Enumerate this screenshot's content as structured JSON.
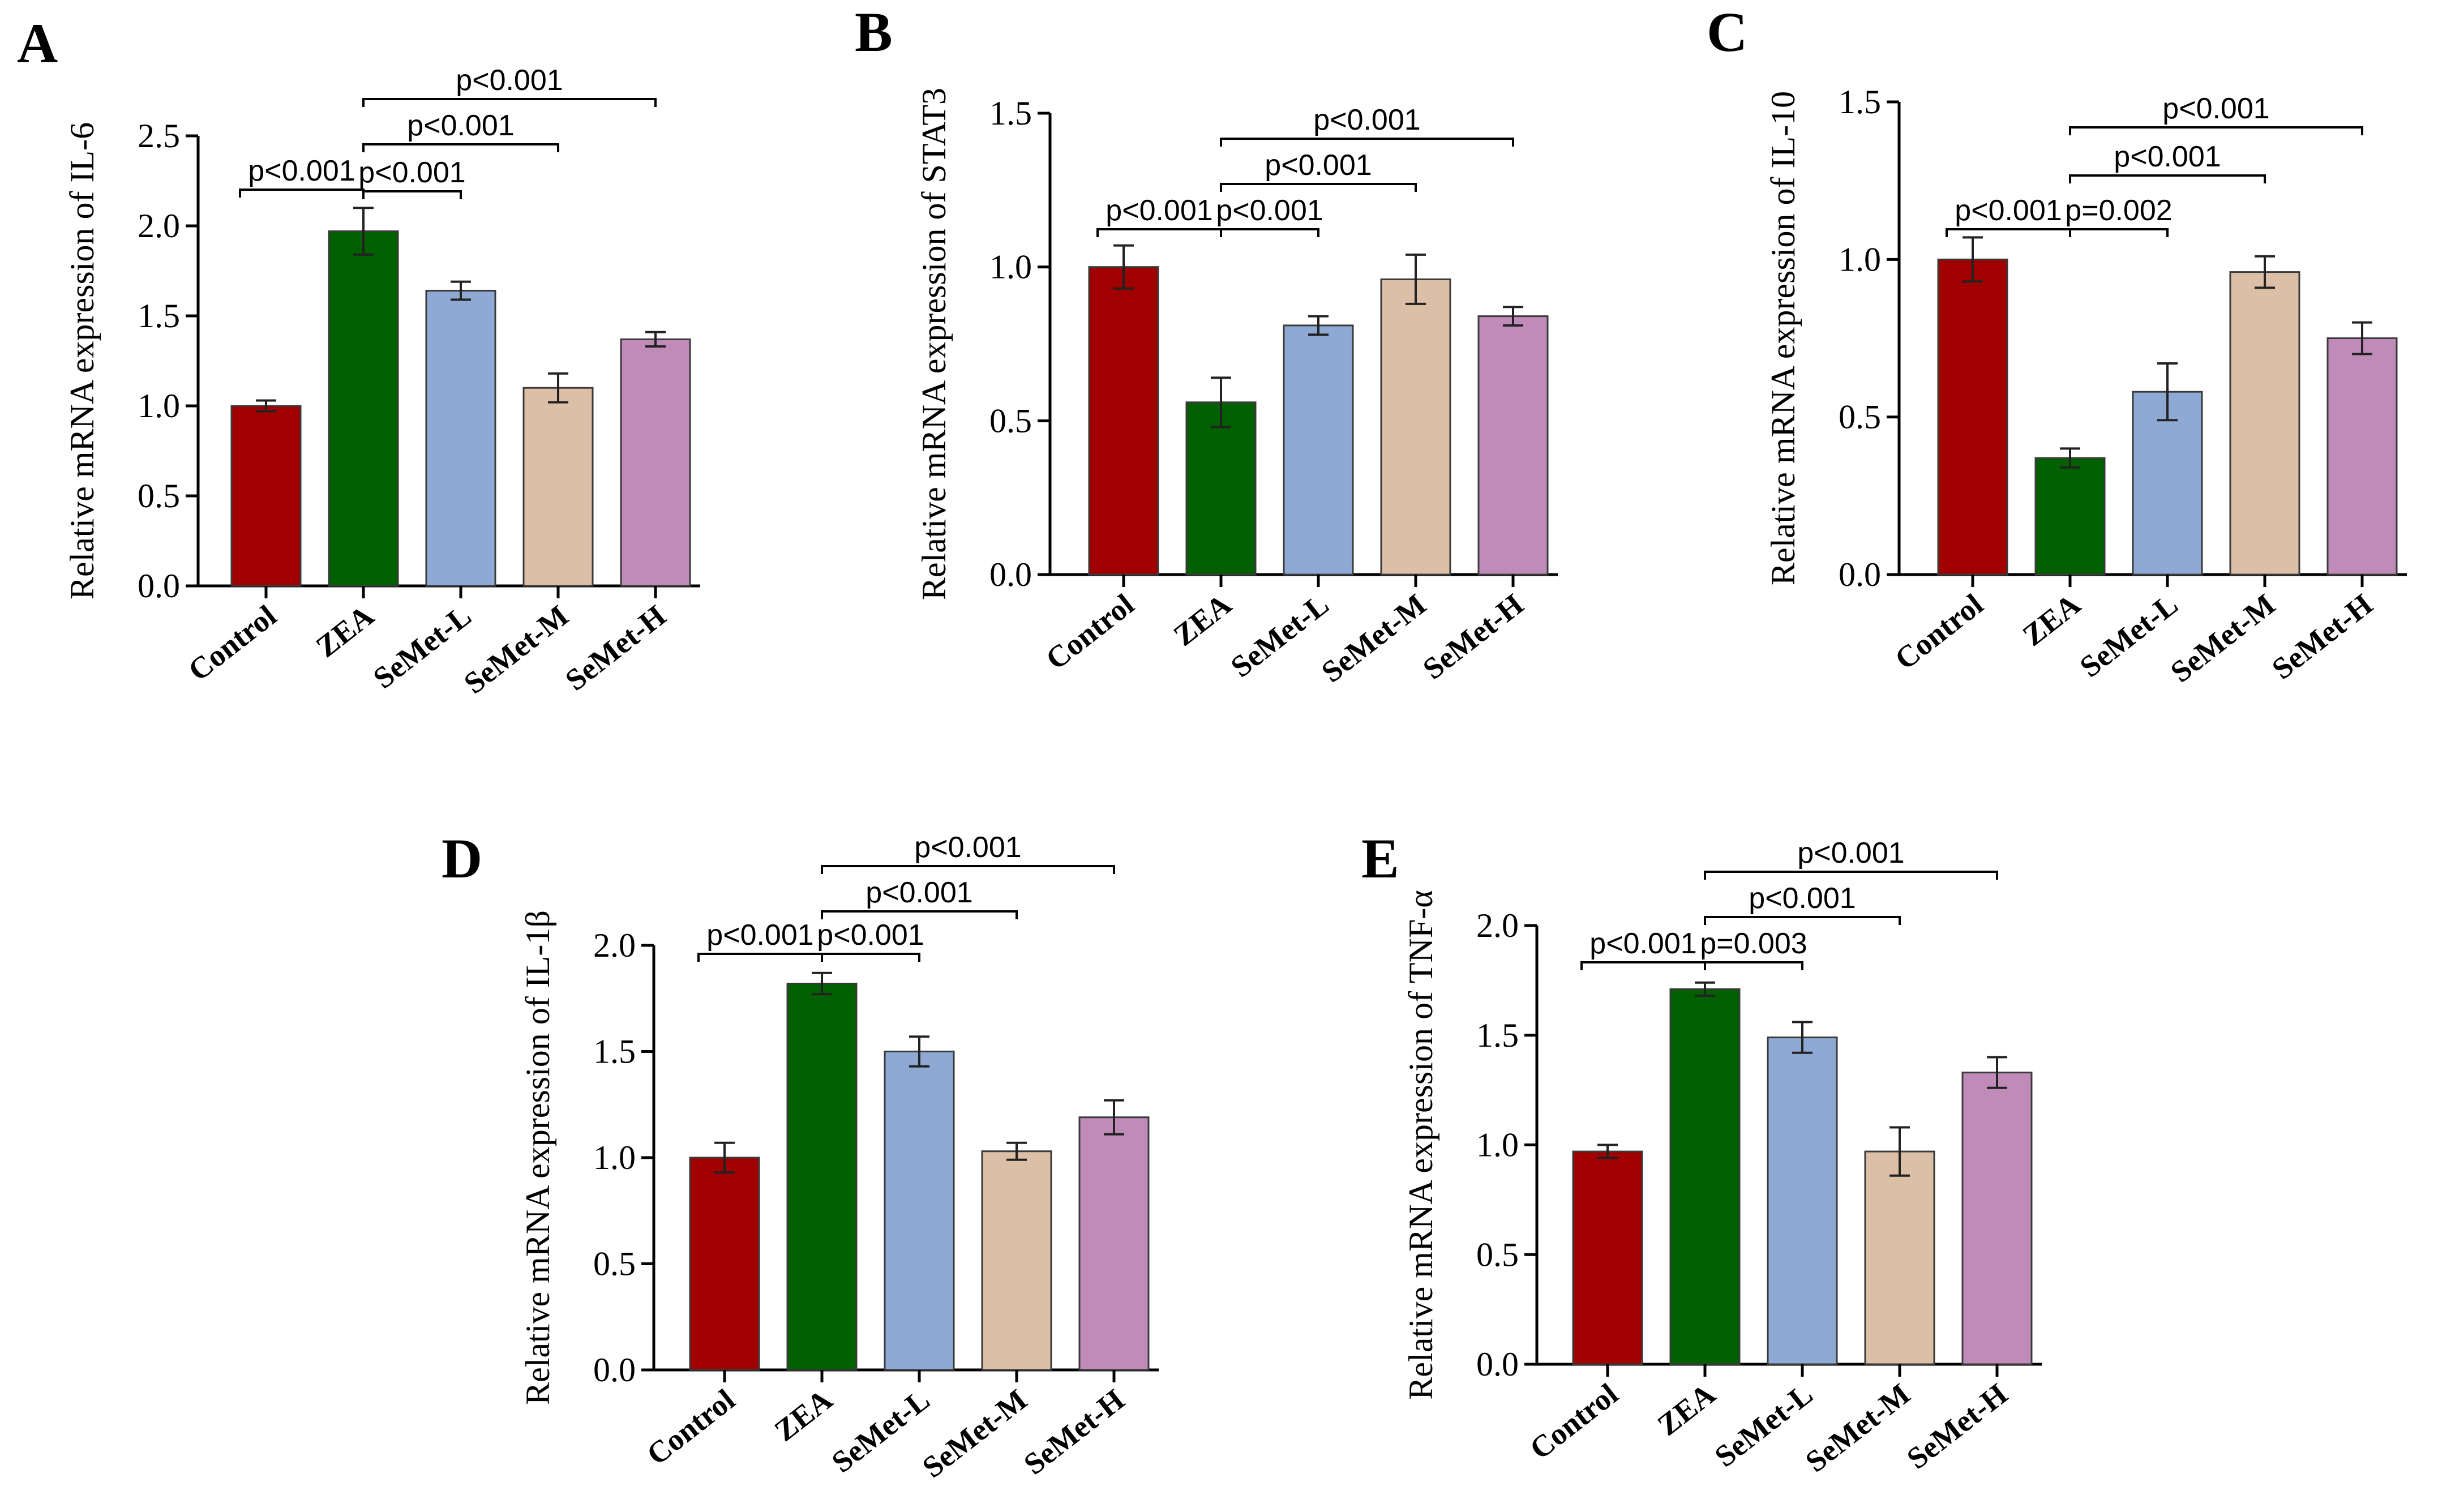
{
  "chart_data": [
    {
      "panel": "A",
      "type": "bar",
      "ylabel": "Relative mRNA expression of IL-6",
      "ylim": [
        0,
        2.5
      ],
      "yticks": [
        "0.0",
        "0.5",
        "1.0",
        "1.5",
        "2.0",
        "2.5"
      ],
      "categories": [
        "Control",
        "ZEA",
        "SeMet-L",
        "SeMet-M",
        "SeMet-H"
      ],
      "values": [
        1.0,
        1.97,
        1.64,
        1.1,
        1.37
      ],
      "errors": [
        0.03,
        0.13,
        0.05,
        0.08,
        0.04
      ],
      "significance": [
        {
          "from": 0,
          "to": 1,
          "label": "p<0.001"
        },
        {
          "from": 1,
          "to": 2,
          "label": "p<0.001"
        },
        {
          "from": 1,
          "to": 3,
          "label": "p<0.001"
        },
        {
          "from": 1,
          "to": 4,
          "label": "p<0.001"
        }
      ]
    },
    {
      "panel": "B",
      "type": "bar",
      "ylabel": "Relative mRNA expression of STAT3",
      "ylim": [
        0,
        1.5
      ],
      "yticks": [
        "0.0",
        "0.5",
        "1.0",
        "1.5"
      ],
      "categories": [
        "Control",
        "ZEA",
        "SeMet-L",
        "SeMet-M",
        "SeMet-H"
      ],
      "values": [
        1.0,
        0.56,
        0.81,
        0.96,
        0.84
      ],
      "errors": [
        0.07,
        0.08,
        0.03,
        0.08,
        0.03
      ],
      "significance": [
        {
          "from": 0,
          "to": 1,
          "label": "p<0.001"
        },
        {
          "from": 1,
          "to": 2,
          "label": "p<0.001"
        },
        {
          "from": 1,
          "to": 3,
          "label": "p<0.001"
        },
        {
          "from": 1,
          "to": 4,
          "label": "p<0.001"
        }
      ]
    },
    {
      "panel": "C",
      "type": "bar",
      "ylabel": "Relative mRNA expression of IL-10",
      "ylim": [
        0,
        1.5
      ],
      "yticks": [
        "0.0",
        "0.5",
        "1.0",
        "1.5"
      ],
      "categories": [
        "Control",
        "ZEA",
        "SeMet-L",
        "SeMet-M",
        "SeMet-H"
      ],
      "values": [
        1.0,
        0.37,
        0.58,
        0.96,
        0.75
      ],
      "errors": [
        0.07,
        0.03,
        0.09,
        0.05,
        0.05
      ],
      "significance": [
        {
          "from": 0,
          "to": 1,
          "label": "p<0.001"
        },
        {
          "from": 1,
          "to": 2,
          "label": "p=0.002"
        },
        {
          "from": 1,
          "to": 3,
          "label": "p<0.001"
        },
        {
          "from": 1,
          "to": 4,
          "label": "p<0.001"
        }
      ]
    },
    {
      "panel": "D",
      "type": "bar",
      "ylabel": "Relative mRNA expression of IL-1β",
      "ylim": [
        0,
        2.0
      ],
      "yticks": [
        "0.0",
        "0.5",
        "1.0",
        "1.5",
        "2.0"
      ],
      "categories": [
        "Control",
        "ZEA",
        "SeMet-L",
        "SeMet-M",
        "SeMet-H"
      ],
      "values": [
        1.0,
        1.82,
        1.5,
        1.03,
        1.19
      ],
      "errors": [
        0.07,
        0.05,
        0.07,
        0.04,
        0.08
      ],
      "significance": [
        {
          "from": 0,
          "to": 1,
          "label": "p<0.001"
        },
        {
          "from": 1,
          "to": 2,
          "label": "p<0.001"
        },
        {
          "from": 1,
          "to": 3,
          "label": "p<0.001"
        },
        {
          "from": 1,
          "to": 4,
          "label": "p<0.001"
        }
      ]
    },
    {
      "panel": "E",
      "type": "bar",
      "ylabel": "Relative mRNA expression of TNF-α",
      "ylim": [
        0,
        2.0
      ],
      "yticks": [
        "0.0",
        "0.5",
        "1.0",
        "1.5",
        "2.0"
      ],
      "categories": [
        "Control",
        "ZEA",
        "SeMet-L",
        "SeMet-M",
        "SeMet-H"
      ],
      "values": [
        0.97,
        1.71,
        1.49,
        0.97,
        1.33
      ],
      "errors": [
        0.03,
        0.03,
        0.07,
        0.11,
        0.07
      ],
      "significance": [
        {
          "from": 0,
          "to": 1,
          "label": "p<0.001"
        },
        {
          "from": 1,
          "to": 2,
          "label": "p=0.003"
        },
        {
          "from": 1,
          "to": 3,
          "label": "p<0.001"
        },
        {
          "from": 1,
          "to": 4,
          "label": "p<0.001"
        }
      ]
    }
  ],
  "colors": {
    "Control": "#a00000",
    "ZEA": "#006000",
    "SeMet-L": "#8eaad4",
    "SeMet-M": "#dbbfa6",
    "SeMet-H": "#c08bb8"
  }
}
